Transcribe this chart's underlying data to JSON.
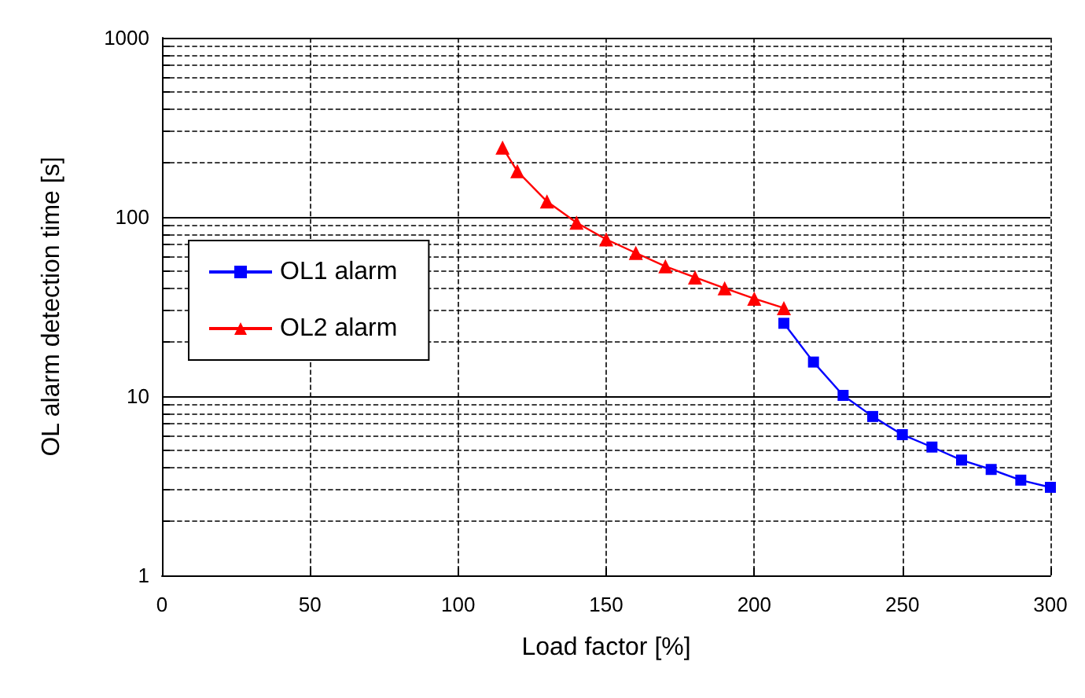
{
  "chart_data": {
    "type": "line",
    "xlabel": "Load factor [%]",
    "ylabel": "OL alarm detection time [s]",
    "xlim": [
      0,
      300
    ],
    "xticks": [
      0,
      50,
      100,
      150,
      200,
      250,
      300
    ],
    "ylim": [
      1,
      1000
    ],
    "yticks": [
      1,
      {
        "value": 2,
        "label": null
      },
      {
        "value": 3,
        "label": null
      },
      {
        "value": 4,
        "label": null
      },
      {
        "value": 5,
        "label": null
      },
      {
        "value": 6,
        "label": null
      },
      {
        "value": 7,
        "label": null
      },
      {
        "value": 8,
        "label": null
      },
      {
        "value": 9,
        "label": null
      },
      10,
      {
        "value": 20,
        "label": null
      },
      {
        "value": 30,
        "label": null
      },
      {
        "value": 40,
        "label": null
      },
      {
        "value": 50,
        "label": null
      },
      {
        "value": 60,
        "label": null
      },
      {
        "value": 70,
        "label": null
      },
      {
        "value": 80,
        "label": null
      },
      {
        "value": 90,
        "label": null
      },
      100,
      {
        "value": 200,
        "label": null
      },
      {
        "value": 300,
        "label": null
      },
      {
        "value": 400,
        "label": null
      },
      {
        "value": 500,
        "label": null
      },
      {
        "value": 600,
        "label": null
      },
      {
        "value": 700,
        "label": null
      },
      {
        "value": 800,
        "label": null
      },
      {
        "value": 900,
        "label": null
      },
      1000
    ],
    "log": "y",
    "grid": true,
    "legend": "left",
    "series": [
      {
        "name": "OL1 alarm",
        "color": "#0000ff",
        "marker": "square",
        "x": [
          210,
          220,
          230,
          240,
          250,
          260,
          270,
          280,
          290,
          300
        ],
        "values": [
          25.5,
          15.5,
          10.1,
          7.7,
          6.1,
          5.2,
          4.4,
          3.9,
          3.4,
          3.1
        ]
      },
      {
        "name": "OL2 alarm",
        "color": "#ff0000",
        "marker": "triangle",
        "x": [
          115,
          120,
          130,
          140,
          150,
          160,
          170,
          180,
          190,
          200,
          210
        ],
        "values": [
          244,
          180,
          122,
          93,
          75,
          63,
          53,
          46,
          40,
          35,
          31
        ]
      }
    ]
  }
}
